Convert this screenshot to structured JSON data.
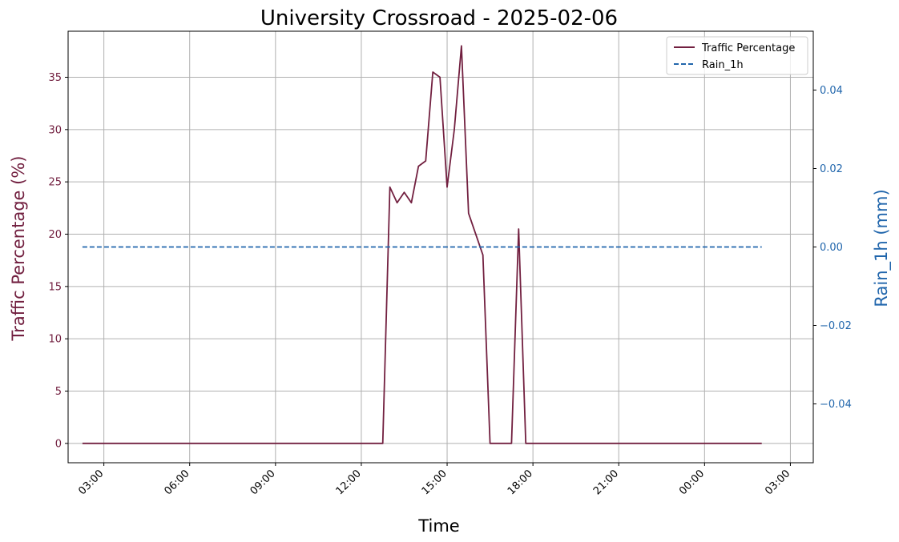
{
  "chart_data": {
    "type": "line",
    "title": "University Crossroad - 2025-02-06",
    "xlabel": "Time",
    "ylabel_left": "Traffic Percentage (%)",
    "ylabel_right": "Rain_1h (mm)",
    "x_ticks": [
      "03:00",
      "06:00",
      "09:00",
      "12:00",
      "15:00",
      "18:00",
      "21:00",
      "00:00",
      "03:00"
    ],
    "y_left_ticks": [
      0,
      5,
      10,
      15,
      20,
      25,
      30,
      35
    ],
    "y_right_ticks": [
      "−0.04",
      "−0.02",
      "0.00",
      "0.02",
      "0.04"
    ],
    "y_left_lim": [
      -1.85,
      39.4
    ],
    "y_right_lim": [
      -0.055,
      0.055
    ],
    "x_lim_hours": [
      1.75,
      27.8
    ],
    "grid": true,
    "legend_position": "top-right",
    "colors": {
      "traffic": "#722040",
      "rain": "#2166ac"
    },
    "series": [
      {
        "name": "Traffic Percentage",
        "axis": "left",
        "style": "solid",
        "x_hours": [
          2.25,
          12.75,
          13.0,
          13.25,
          13.5,
          13.75,
          14.0,
          14.25,
          14.5,
          14.75,
          15.0,
          15.25,
          15.5,
          15.75,
          16.25,
          16.5,
          17.25,
          17.5,
          17.75,
          26.0
        ],
        "values": [
          0,
          0,
          24.5,
          23,
          24,
          23,
          26.5,
          27,
          35.5,
          35,
          24.5,
          30,
          38,
          22,
          18,
          0,
          0,
          20.5,
          0,
          0
        ]
      },
      {
        "name": "Rain_1h",
        "axis": "right",
        "style": "dashed",
        "x_hours": [
          2.25,
          26.0
        ],
        "values": [
          0.0,
          0.0
        ]
      }
    ]
  }
}
